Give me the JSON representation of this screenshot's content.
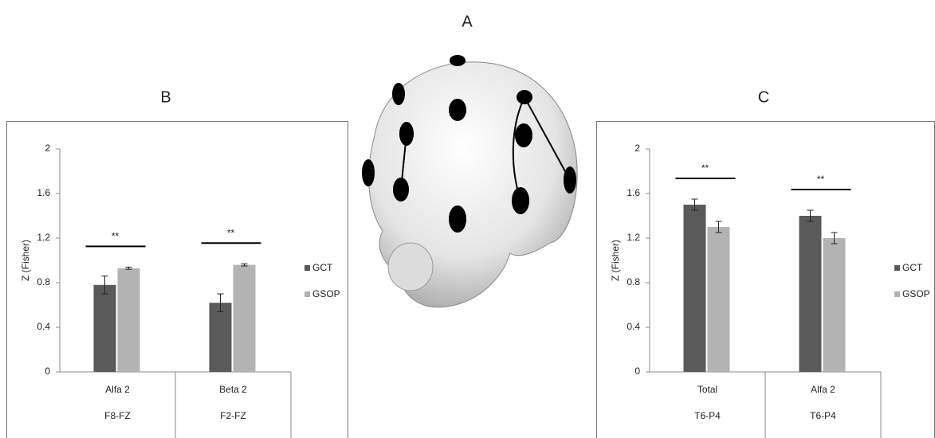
{
  "panel_label": "A",
  "chart_data": [
    {
      "type": "bar",
      "panel": "B",
      "ylabel": "Z (Fisher)",
      "categories": [
        "Alfa 2",
        "Beta 2"
      ],
      "subcategories": [
        "F8-FZ",
        "F2-FZ"
      ],
      "series": [
        {
          "name": "GCT",
          "color": "#5a5a5a",
          "values": [
            0.78,
            0.62
          ],
          "errors": [
            0.08,
            0.08
          ]
        },
        {
          "name": "GSOP",
          "color": "#b3b3b3",
          "values": [
            0.93,
            0.96
          ],
          "errors": [
            0.01,
            0.01
          ]
        }
      ],
      "significance": [
        "**",
        "**"
      ],
      "ylim": [
        0,
        2
      ],
      "yticks": [
        0,
        0.4,
        0.8,
        1.2,
        1.6,
        2
      ]
    },
    {
      "type": "bar",
      "panel": "C",
      "ylabel": "Z (Fisher)",
      "categories": [
        "Total",
        "Alfa 2"
      ],
      "subcategories": [
        "T6-P4",
        "T6-P4"
      ],
      "series": [
        {
          "name": "GCT",
          "color": "#5a5a5a",
          "values": [
            1.5,
            1.4
          ],
          "errors": [
            0.05,
            0.05
          ]
        },
        {
          "name": "GSOP",
          "color": "#b3b3b3",
          "values": [
            1.3,
            1.2
          ],
          "errors": [
            0.05,
            0.05
          ]
        }
      ],
      "significance": [
        "**",
        "**"
      ],
      "ylim": [
        0,
        2
      ],
      "yticks": [
        0,
        0.4,
        0.8,
        1.2,
        1.6,
        2
      ]
    }
  ]
}
